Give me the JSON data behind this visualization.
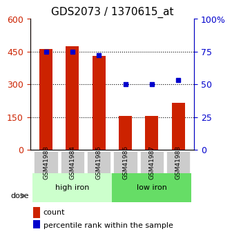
{
  "title": "GDS2073 / 1370615_at",
  "samples": [
    "GSM41983",
    "GSM41984",
    "GSM41985",
    "GSM41986",
    "GSM41987",
    "GSM41988"
  ],
  "counts": [
    460,
    475,
    430,
    155,
    155,
    215
  ],
  "percentiles": [
    75,
    75,
    72,
    50,
    50,
    53
  ],
  "groups": [
    {
      "label": "high iron",
      "start": 0,
      "end": 3,
      "color": "#ccffcc"
    },
    {
      "label": "low iron",
      "start": 3,
      "end": 6,
      "color": "#66dd66"
    }
  ],
  "dose_label": "dose",
  "left_yticks": [
    0,
    150,
    300,
    450,
    600
  ],
  "right_yticks": [
    0,
    25,
    50,
    75,
    100
  ],
  "left_ytick_labels": [
    "0",
    "150",
    "300",
    "450",
    "600"
  ],
  "right_ytick_labels": [
    "0",
    "25",
    "50",
    "75",
    "100%"
  ],
  "bar_color": "#cc2200",
  "point_color": "#0000cc",
  "grid_color": "#000000",
  "legend_count_label": "count",
  "legend_pct_label": "percentile rank within the sample",
  "xlabel_color": "#888888",
  "left_axis_color": "#cc2200",
  "right_axis_color": "#0000cc"
}
